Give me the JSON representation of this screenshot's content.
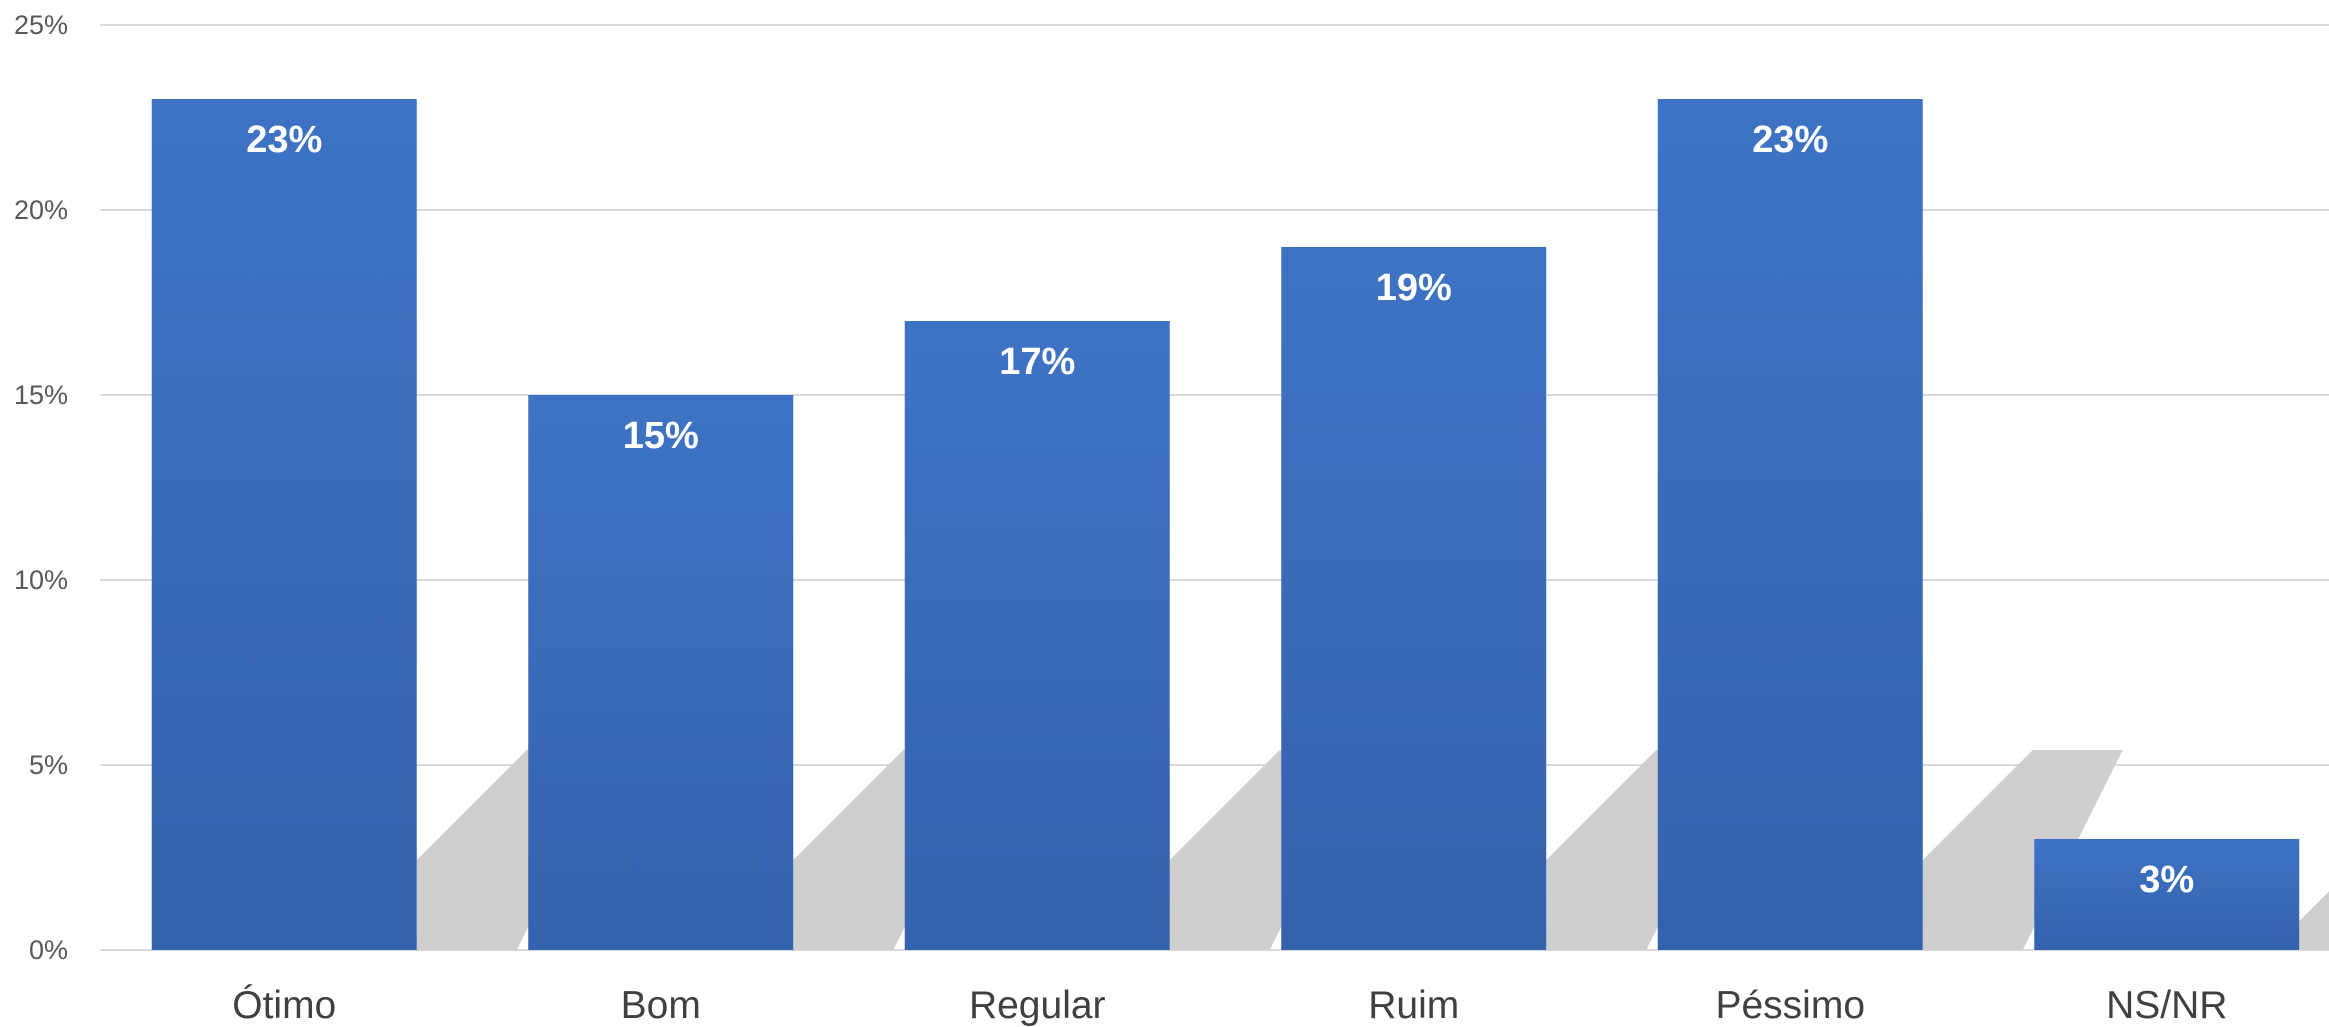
{
  "chart_data": {
    "type": "bar",
    "categories": [
      "Ótimo",
      "Bom",
      "Regular",
      "Ruim",
      "Péssimo",
      "NS/NR"
    ],
    "values": [
      23,
      15,
      17,
      19,
      23,
      3
    ],
    "value_labels": [
      "23%",
      "15%",
      "17%",
      "19%",
      "23%",
      "3%"
    ],
    "yticks": [
      "0%",
      "5%",
      "10%",
      "15%",
      "20%",
      "25%"
    ],
    "ylim": [
      0,
      25
    ],
    "grid": true,
    "bar_color": "#3e73c4",
    "bar_color_dark": "#3462ae",
    "title": "",
    "xlabel": "",
    "ylabel": ""
  }
}
